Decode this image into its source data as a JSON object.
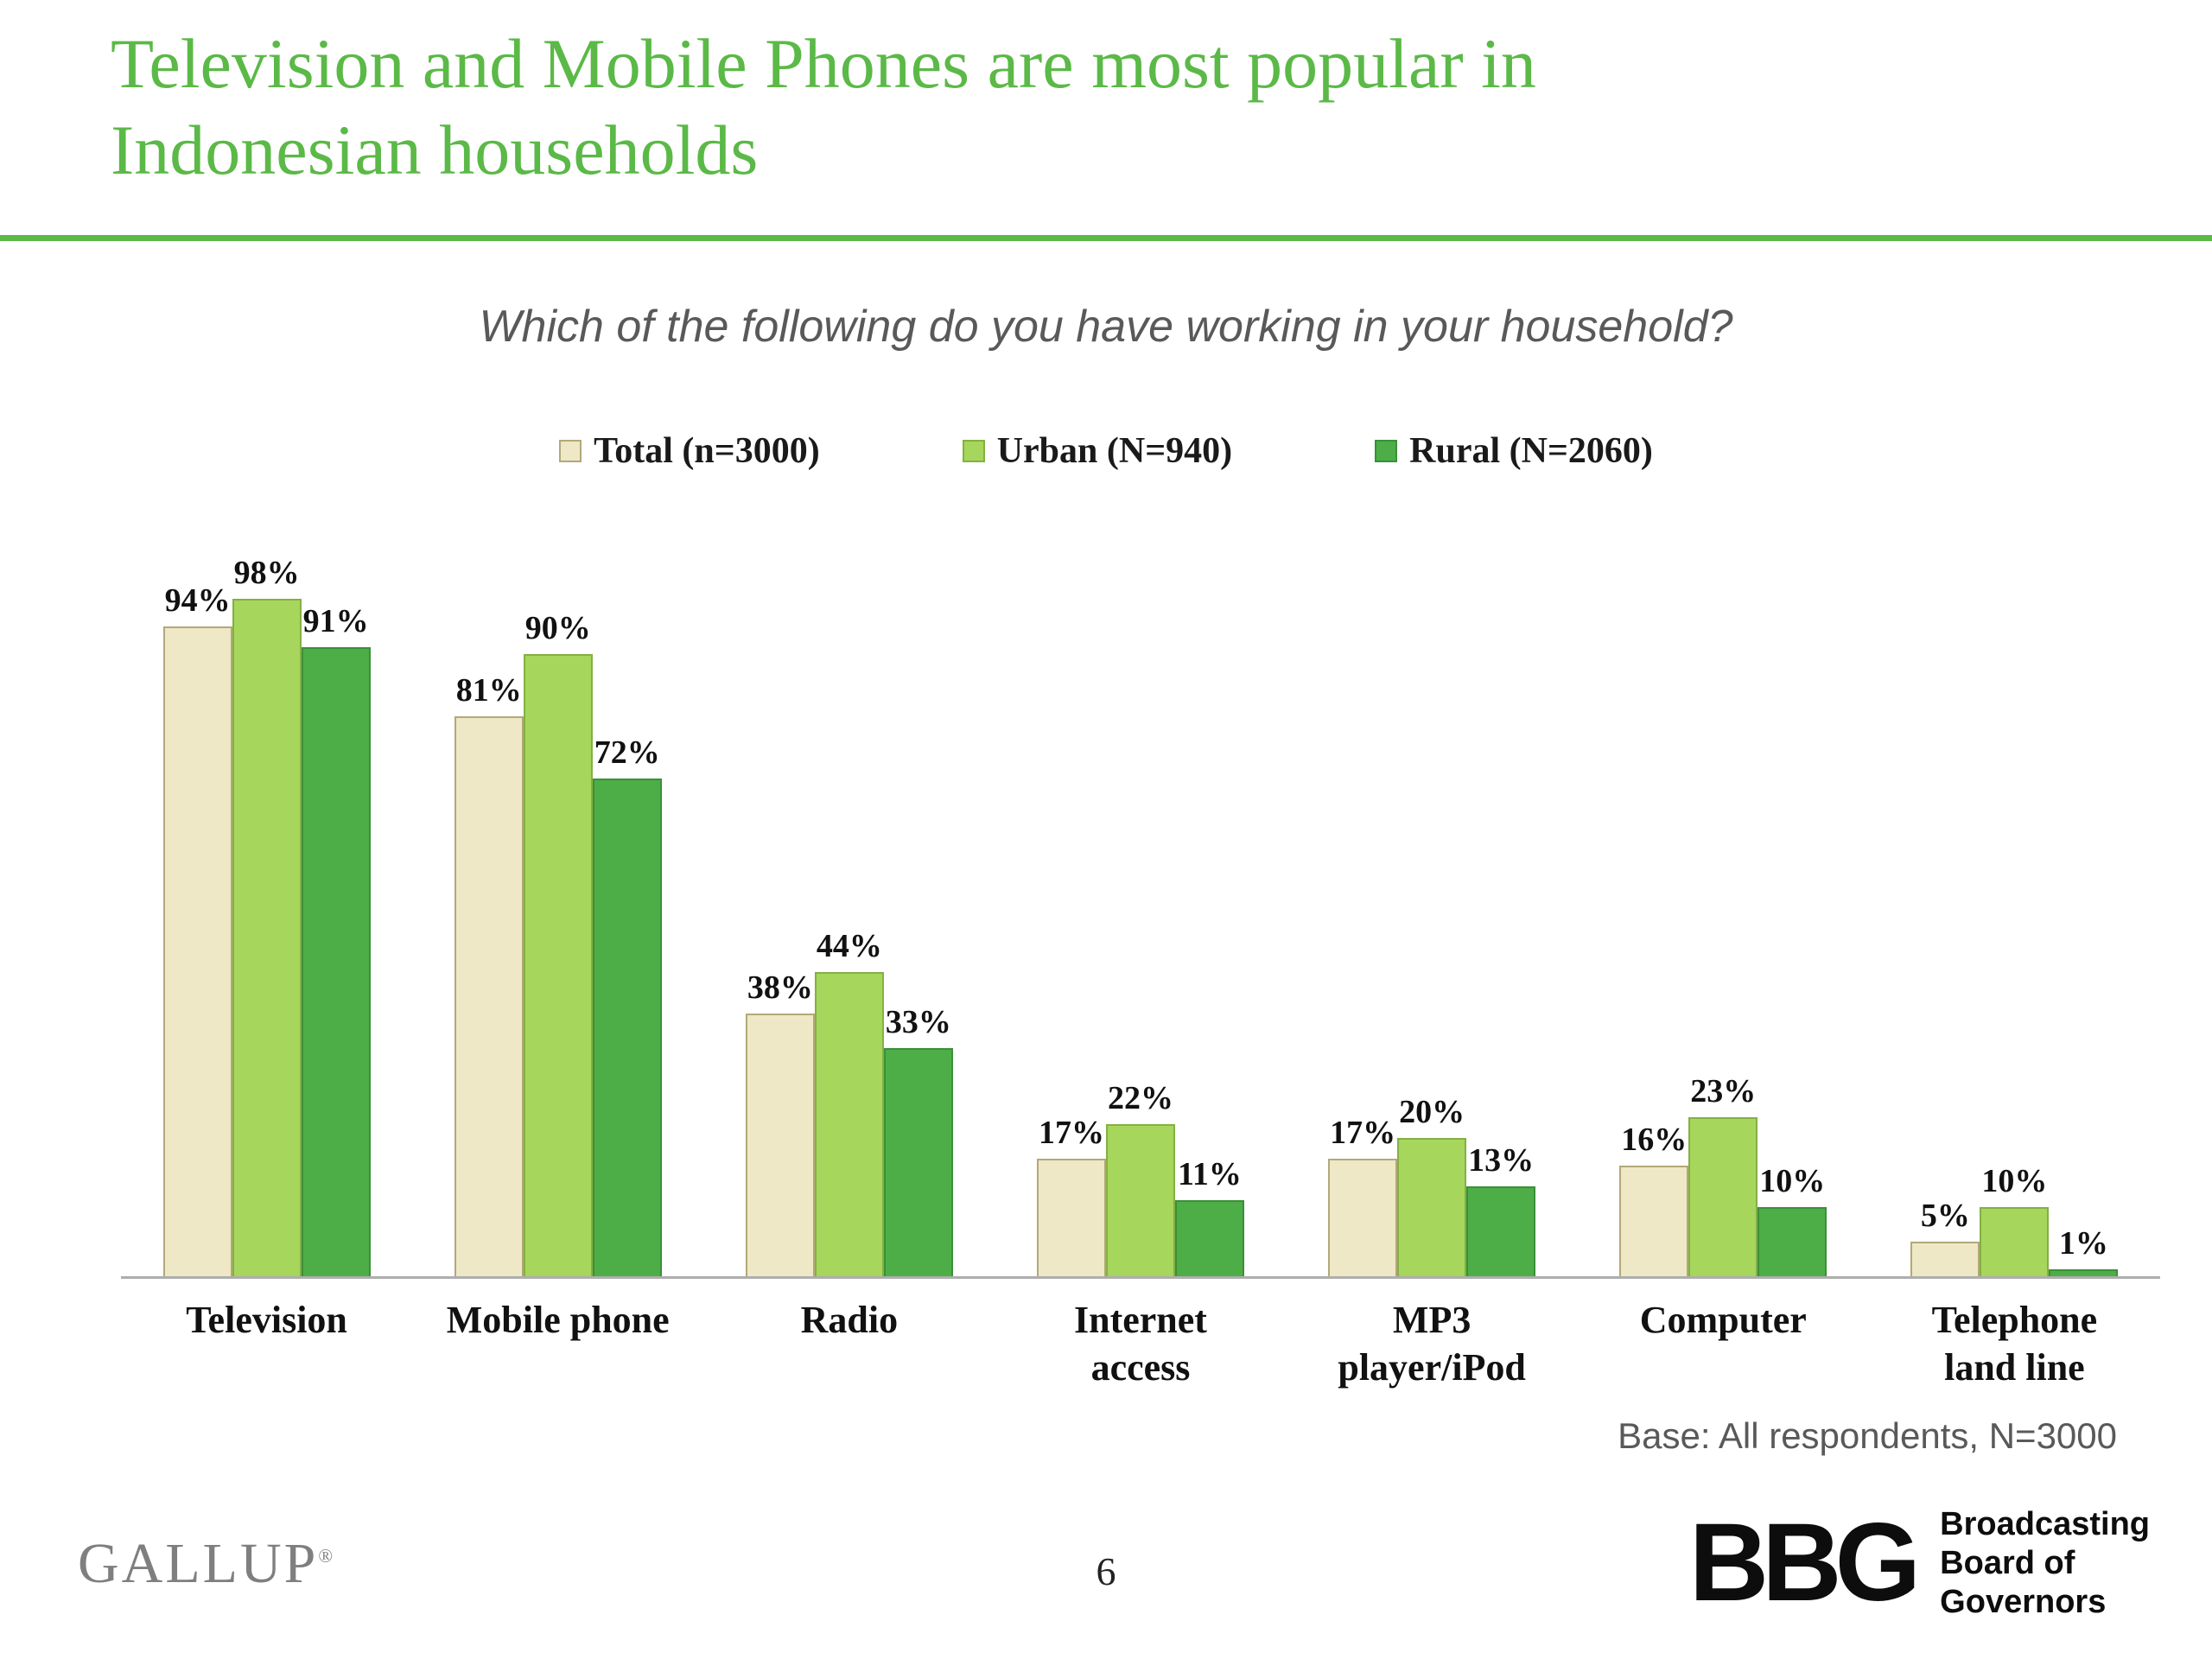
{
  "slide": {
    "title_lines": [
      "Television and Mobile Phones are most popular in",
      "Indonesian households"
    ],
    "subtitle": "Which of the following do you have working in your household?",
    "base_note": "Base: All respondents, N=3000",
    "page_number": "6"
  },
  "footer": {
    "gallup_wordmark": "GALLUP",
    "gallup_mark": "®",
    "bbg_monogram": "BBG",
    "bbg_lines": [
      "Broadcasting",
      "Board of",
      "Governors"
    ]
  },
  "colors": {
    "accent_green": "#5bb947",
    "axis_line": "#aeaeae"
  },
  "chart_data": {
    "type": "bar",
    "title": "Which of the following do you have working in your household?",
    "categories": [
      "Television",
      "Mobile phone",
      "Radio",
      "Internet access",
      "MP3 player/iPod",
      "Computer",
      "Telephone land line"
    ],
    "category_lines": [
      [
        "Television"
      ],
      [
        "Mobile phone"
      ],
      [
        "Radio"
      ],
      [
        "Internet",
        "access"
      ],
      [
        "MP3",
        "player/iPod"
      ],
      [
        "Computer"
      ],
      [
        "Telephone",
        "land line"
      ]
    ],
    "series": [
      {
        "name": "Total (n=3000)",
        "fill": "#efe8c6",
        "border": "#b3a879",
        "values": [
          94,
          81,
          38,
          17,
          17,
          16,
          5
        ]
      },
      {
        "name": "Urban (N=940)",
        "fill": "#a6d65b",
        "border": "#83b044",
        "values": [
          98,
          90,
          44,
          22,
          20,
          23,
          10
        ]
      },
      {
        "name": "Rural (N=2060)",
        "fill": "#4dae48",
        "border": "#3b8f38",
        "values": [
          91,
          72,
          33,
          11,
          13,
          10,
          1
        ]
      }
    ],
    "ylim": [
      0,
      100
    ],
    "value_suffix": "%",
    "grid": false,
    "legend_position": "top",
    "base_note": "Base: All respondents, N=3000"
  }
}
